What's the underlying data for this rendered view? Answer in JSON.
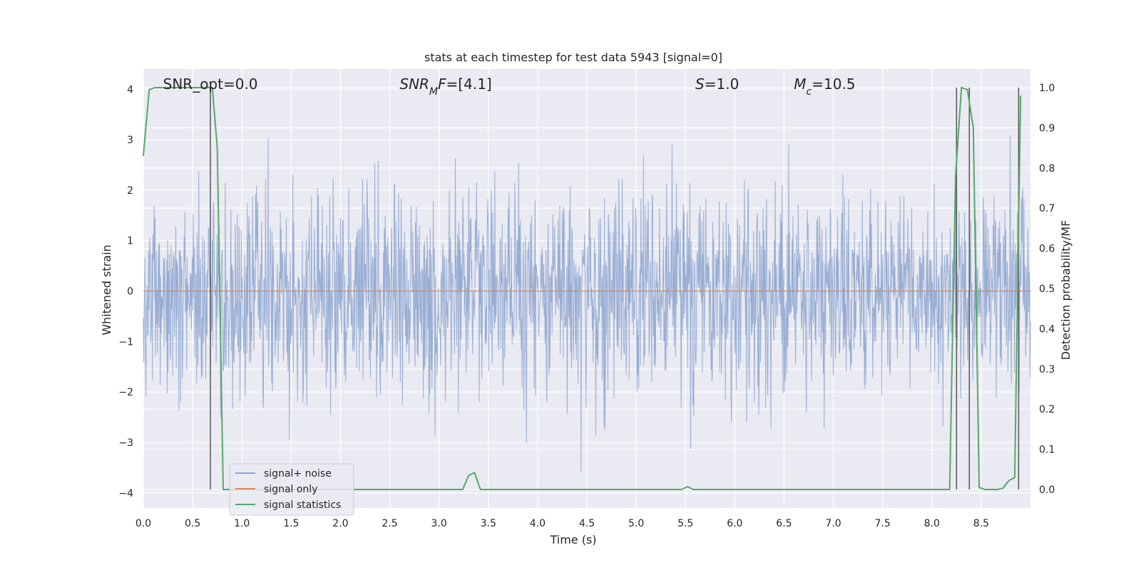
{
  "chart_data": {
    "type": "line",
    "title": "stats at each timestep for test data 5943 [signal=0]",
    "xlabel": "Time (s)",
    "ylabel": "Whitened strain",
    "y2label": "Detection probability/MF",
    "xlim": [
      0,
      9.0
    ],
    "ylim": [
      -4.3,
      4.4
    ],
    "y2lim": [
      -0.046,
      1.046
    ],
    "x_ticks": [
      0.0,
      0.5,
      1.0,
      1.5,
      2.0,
      2.5,
      3.0,
      3.5,
      4.0,
      4.5,
      5.0,
      5.5,
      6.0,
      6.5,
      7.0,
      7.5,
      8.0,
      8.5
    ],
    "x_tick_labels": [
      "0.0",
      "0.5",
      "1.0",
      "1.5",
      "2.0",
      "2.5",
      "3.0",
      "3.5",
      "4.0",
      "4.5",
      "5.0",
      "5.5",
      "6.0",
      "6.5",
      "7.0",
      "7.5",
      "8.0",
      "8.5"
    ],
    "y_ticks": [
      4,
      3,
      2,
      1,
      0,
      -1,
      -2,
      -3,
      -4
    ],
    "y_tick_labels": [
      "4",
      "3",
      "2",
      "1",
      "0",
      "−1",
      "−2",
      "−3",
      "−4"
    ],
    "y2_ticks": [
      1.0,
      0.9,
      0.8,
      0.7,
      0.6,
      0.5,
      0.4,
      0.3,
      0.2,
      0.1,
      0.0
    ],
    "y2_tick_labels": [
      "1.0",
      "0.9",
      "0.8",
      "0.7",
      "0.6",
      "0.5",
      "0.4",
      "0.3",
      "0.2",
      "0.1",
      "0.0"
    ],
    "grid": true,
    "legend_position": "lower-left",
    "annotations": [
      {
        "text": "SNR_opt=0.0",
        "x": 0.2,
        "y": 4.1,
        "style": "normal"
      },
      {
        "text_parts": [
          {
            "t": "SNR",
            "i": true
          },
          {
            "t": "M",
            "i": true,
            "sub": true
          },
          {
            "t": "F",
            "i": true
          },
          {
            "t": "=[4.1]",
            "i": false
          }
        ],
        "x": 2.6,
        "y": 4.1
      },
      {
        "text_parts": [
          {
            "t": "S",
            "i": true
          },
          {
            "t": "=1.0",
            "i": false
          }
        ],
        "x": 5.6,
        "y": 4.1
      },
      {
        "text_parts": [
          {
            "t": "M",
            "i": true
          },
          {
            "t": "c",
            "i": true,
            "sub": true
          },
          {
            "t": "=10.5",
            "i": false
          }
        ],
        "x": 6.6,
        "y": 4.1
      }
    ],
    "series": [
      {
        "name": "signal+ noise",
        "color": "#8fa6cf",
        "axis": "left",
        "kind": "noise",
        "samples": 2048,
        "seed": 5943,
        "sigma": 1.0
      },
      {
        "name": "signal only",
        "color": "#dd8452",
        "axis": "left",
        "x": [
          0.0,
          9.0
        ],
        "y": [
          0.0,
          0.0
        ]
      },
      {
        "name": "signal statistics",
        "color": "#55a868",
        "axis": "right",
        "x": [
          0.0,
          0.06,
          0.12,
          0.18,
          0.24,
          0.3,
          0.36,
          0.42,
          0.48,
          0.54,
          0.6,
          0.66,
          0.7,
          0.75,
          0.81,
          0.87,
          0.93,
          1.5,
          2.0,
          2.5,
          3.0,
          3.24,
          3.3,
          3.36,
          3.42,
          3.48,
          4.0,
          4.5,
          5.0,
          5.46,
          5.52,
          5.58,
          5.64,
          6.0,
          7.0,
          8.0,
          8.18,
          8.24,
          8.3,
          8.36,
          8.42,
          8.48,
          8.54,
          8.6,
          8.66,
          8.72,
          8.78,
          8.84,
          8.9
        ],
        "y": [
          0.83,
          0.995,
          1.0,
          1.0,
          1.0,
          1.0,
          1.0,
          1.0,
          1.0,
          1.0,
          1.0,
          1.0,
          1.0,
          0.85,
          0.0,
          0.0,
          0.0,
          0.0,
          0.0,
          0.0,
          0.0,
          0.0,
          0.035,
          0.042,
          0.0,
          0.0,
          0.0,
          0.0,
          0.0,
          0.0,
          0.007,
          0.0,
          0.0,
          0.0,
          0.0,
          0.0,
          0.0,
          0.78,
          1.0,
          0.995,
          0.9,
          0.005,
          0.0,
          0.0,
          0.0,
          0.003,
          0.022,
          0.03,
          0.98
        ]
      }
    ],
    "vlines": [
      0.68,
      8.25,
      8.38,
      8.88
    ],
    "vline_color": "#555555"
  }
}
